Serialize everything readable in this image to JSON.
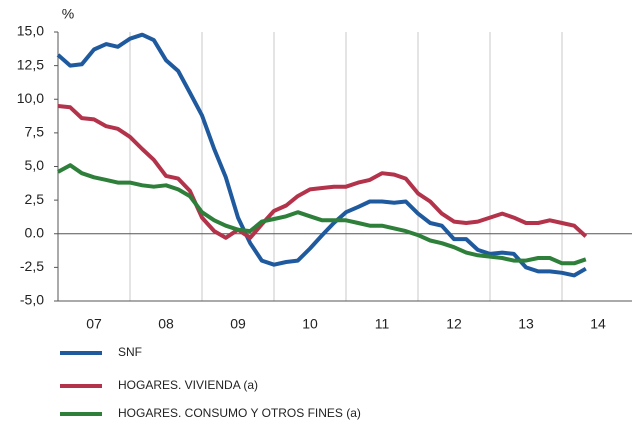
{
  "chart_data": {
    "type": "line",
    "unit_label": "%",
    "x": [
      2007,
      2007.17,
      2007.33,
      2007.5,
      2007.67,
      2007.83,
      2008,
      2008.17,
      2008.33,
      2008.5,
      2008.67,
      2008.83,
      2009,
      2009.17,
      2009.33,
      2009.5,
      2009.67,
      2009.83,
      2010,
      2010.17,
      2010.33,
      2010.5,
      2010.67,
      2010.83,
      2011,
      2011.17,
      2011.33,
      2011.5,
      2011.67,
      2011.83,
      2012,
      2012.17,
      2012.33,
      2012.5,
      2012.67,
      2012.83,
      2013,
      2013.17,
      2013.33,
      2013.5,
      2013.67,
      2013.83,
      2014,
      2014.17,
      2014.33
    ],
    "series": [
      {
        "name": "SNF",
        "color": "#1f5a9e",
        "values": [
          13.3,
          12.5,
          12.6,
          13.7,
          14.1,
          13.9,
          14.5,
          14.8,
          14.4,
          12.9,
          12.1,
          10.5,
          8.8,
          6.3,
          4.2,
          1.2,
          -0.7,
          -2.0,
          -2.3,
          -2.1,
          -2.0,
          -1.1,
          -0.1,
          0.8,
          1.6,
          2.0,
          2.4,
          2.4,
          2.3,
          2.4,
          1.5,
          0.8,
          0.6,
          -0.4,
          -0.4,
          -1.2,
          -1.5,
          -1.4,
          -1.5,
          -2.5,
          -2.8,
          -2.8,
          -2.9,
          -3.1,
          -2.6
        ]
      },
      {
        "name": "HOGARES. VIVIENDA (a)",
        "color": "#b3334b",
        "values": [
          9.5,
          9.4,
          8.6,
          8.5,
          8.0,
          7.8,
          7.2,
          6.3,
          5.5,
          4.3,
          4.1,
          3.2,
          1.2,
          0.2,
          -0.3,
          0.3,
          -0.3,
          0.7,
          1.7,
          2.1,
          2.8,
          3.3,
          3.4,
          3.5,
          3.5,
          3.8,
          4.0,
          4.5,
          4.4,
          4.1,
          3.0,
          2.4,
          1.5,
          0.9,
          0.8,
          0.9,
          1.2,
          1.5,
          1.2,
          0.8,
          0.8,
          1.0,
          0.8,
          0.6,
          -0.2
        ]
      },
      {
        "name": "HOGARES. CONSUMO Y OTROS FINES (a)",
        "color": "#2e7f3a",
        "values": [
          4.6,
          5.1,
          4.5,
          4.2,
          4.0,
          3.8,
          3.8,
          3.6,
          3.5,
          3.6,
          3.3,
          2.8,
          1.6,
          1.0,
          0.6,
          0.3,
          0.2,
          0.9,
          1.1,
          1.3,
          1.6,
          1.3,
          1.0,
          1.0,
          1.0,
          0.8,
          0.6,
          0.6,
          0.4,
          0.2,
          -0.1,
          -0.5,
          -0.7,
          -1.0,
          -1.4,
          -1.6,
          -1.7,
          -1.8,
          -2.0,
          -2.0,
          -1.8,
          -1.8,
          -2.2,
          -2.2,
          -1.9
        ]
      }
    ],
    "xlim": [
      2007,
      2015
    ],
    "xticks": [
      {
        "value": 2007.5,
        "label": "07"
      },
      {
        "value": 2008.5,
        "label": "08"
      },
      {
        "value": 2009.5,
        "label": "09"
      },
      {
        "value": 2010.5,
        "label": "10"
      },
      {
        "value": 2011.5,
        "label": "11"
      },
      {
        "value": 2012.5,
        "label": "12"
      },
      {
        "value": 2013.5,
        "label": "13"
      },
      {
        "value": 2014.5,
        "label": "14"
      }
    ],
    "ylim": [
      -5,
      15
    ],
    "yticks": [
      {
        "value": 15,
        "label": "15,0"
      },
      {
        "value": 12.5,
        "label": "12,5"
      },
      {
        "value": 10,
        "label": "10,0"
      },
      {
        "value": 7.5,
        "label": "7,5"
      },
      {
        "value": 5,
        "label": "5,0"
      },
      {
        "value": 2.5,
        "label": "2,5"
      },
      {
        "value": 0,
        "label": "0.0"
      },
      {
        "value": -2.5,
        "label": "-2,5"
      },
      {
        "value": -5,
        "label": "-5,0"
      }
    ],
    "legend": "below"
  }
}
